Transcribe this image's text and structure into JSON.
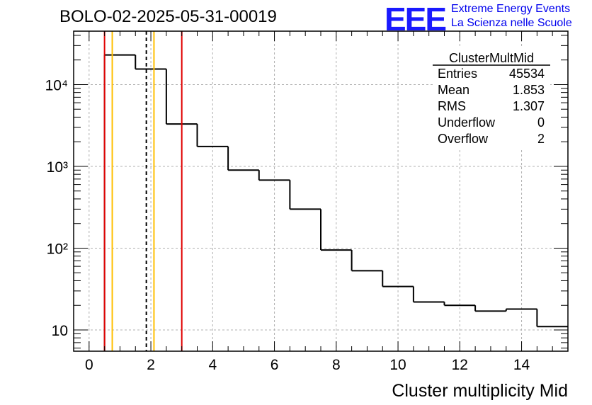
{
  "header": {
    "title": "BOLO-02-2025-05-31-00019",
    "logo_text": "EEE",
    "logo_line1": "Extreme Energy Events",
    "logo_line2": "La Scienza nelle Scuole"
  },
  "stats": {
    "name": "ClusterMultMid",
    "rows": [
      {
        "label": "Entries",
        "value": "45534"
      },
      {
        "label": "Mean",
        "value": "1.853"
      },
      {
        "label": "RMS",
        "value": "1.307"
      },
      {
        "label": "Underflow",
        "value": "0"
      },
      {
        "label": "Overflow",
        "value": "2"
      }
    ]
  },
  "chart_data": {
    "type": "histogram",
    "title": "BOLO-02-2025-05-31-00019",
    "xlabel": "Cluster multiplicity Mid",
    "ylabel": "",
    "y_scale": "log",
    "xlim": [
      -0.5,
      15.5
    ],
    "x_ticks": [
      0,
      2,
      4,
      6,
      8,
      10,
      12,
      14
    ],
    "x_tick_labels": [
      "0",
      "2",
      "4",
      "6",
      "8",
      "10",
      "12",
      "14"
    ],
    "y_ticks": [
      10,
      100,
      1000,
      10000
    ],
    "y_tick_labels": [
      "10",
      "10²",
      "10³",
      "10⁴"
    ],
    "grid": true,
    "bin_edges": [
      0.5,
      1.5,
      2.5,
      3.5,
      4.5,
      5.5,
      6.5,
      7.5,
      8.5,
      9.5,
      10.5,
      11.5,
      12.5,
      13.5,
      14.5,
      15.5
    ],
    "counts": [
      23000,
      15500,
      3300,
      1750,
      900,
      680,
      300,
      95,
      53,
      34,
      22,
      20,
      17,
      18,
      11
    ],
    "markers": [
      {
        "x": 0.5,
        "color": "#e00000",
        "style": "solid"
      },
      {
        "x": 0.75,
        "color": "#ffbf00",
        "style": "solid"
      },
      {
        "x": 1.853,
        "color": "#000000",
        "style": "dashed"
      },
      {
        "x": 2.1,
        "color": "#ffbf00",
        "style": "solid"
      },
      {
        "x": 3.0,
        "color": "#e00000",
        "style": "solid"
      }
    ]
  },
  "colors": {
    "logo_blue": "#1a1aff",
    "text_blue": "#0000ee",
    "grid": "#b0b0b0"
  }
}
